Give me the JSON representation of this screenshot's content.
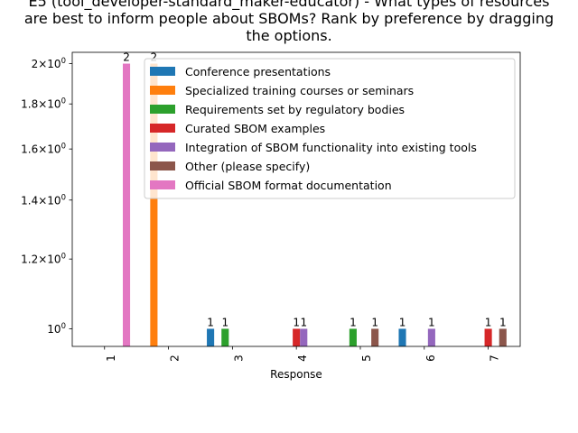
{
  "chart_data": {
    "type": "bar",
    "title_lines": [
      "E5 (tool_developer-standard_maker-educator) - What types of resources",
      "are best to inform people about SBOMs? Rank by preference by dragging",
      "the options."
    ],
    "xlabel": "Response",
    "ylabel": "",
    "yscale": "log",
    "ylim": [
      0.955,
      2.06
    ],
    "yticks": [
      {
        "value": 1.0,
        "label": "10⁰",
        "coef": ""
      },
      {
        "value": 1.2,
        "label": "1.2×10⁰",
        "coef": "1.2"
      },
      {
        "value": 1.4,
        "label": "1.4×10⁰",
        "coef": "1.4"
      },
      {
        "value": 1.6,
        "label": "1.6×10⁰",
        "coef": "1.6"
      },
      {
        "value": 1.8,
        "label": "1.8×10⁰",
        "coef": "1.8"
      },
      {
        "value": 2.0,
        "label": "2×10⁰",
        "coef": "2"
      }
    ],
    "categories": [
      "1",
      "2",
      "3",
      "4",
      "5",
      "6",
      "7"
    ],
    "legend_position": "top-right",
    "grid": false,
    "series": [
      {
        "name": "Conference presentations",
        "color": "#1f77b4",
        "values": [
          0,
          0,
          1,
          0,
          0,
          1,
          0
        ]
      },
      {
        "name": "Specialized training courses or seminars",
        "color": "#ff7f0e",
        "values": [
          0,
          2,
          0,
          0,
          0,
          0,
          0
        ]
      },
      {
        "name": "Requirements set by regulatory bodies",
        "color": "#2ca02c",
        "values": [
          0,
          0,
          1,
          0,
          1,
          0,
          0
        ]
      },
      {
        "name": "Curated SBOM examples",
        "color": "#d62728",
        "values": [
          0,
          0,
          0,
          1,
          0,
          0,
          1
        ]
      },
      {
        "name": "Integration of SBOM functionality into existing tools",
        "color": "#9467bd",
        "values": [
          0,
          0,
          0,
          1,
          0,
          1,
          0
        ]
      },
      {
        "name": "Other (please specify)",
        "color": "#8c564b",
        "values": [
          0,
          0,
          0,
          0,
          1,
          0,
          1
        ]
      },
      {
        "name": "Official SBOM format documentation",
        "color": "#e377c2",
        "values": [
          2,
          0,
          0,
          0,
          0,
          0,
          0
        ]
      }
    ]
  }
}
